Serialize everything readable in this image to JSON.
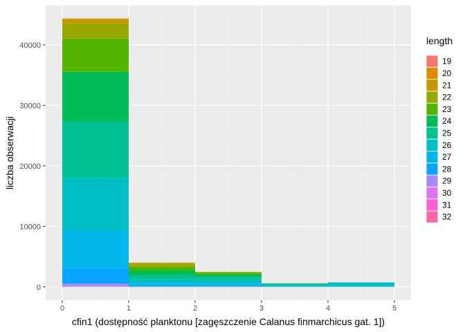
{
  "chart_data": {
    "type": "bar",
    "stacked": true,
    "xlabel": "cfin1 (dostępność planktonu [zagęszczenie Calanus finmarchicus gat. 1])",
    "ylabel": "liczba obserwacji",
    "xlim": [
      -0.25,
      5.25
    ],
    "ylim": [
      -2200,
      46500
    ],
    "x_ticks": [
      0,
      1,
      2,
      3,
      4,
      5
    ],
    "y_ticks": [
      0,
      10000,
      20000,
      30000,
      40000
    ],
    "y_tick_labels": [
      "0",
      "10000",
      "20000",
      "30000",
      "40000"
    ],
    "bins": [
      [
        0,
        1
      ],
      [
        1,
        2
      ],
      [
        2,
        3
      ],
      [
        3,
        4
      ],
      [
        4,
        5
      ]
    ],
    "grid": true,
    "legend": {
      "title": "length",
      "position": "right"
    },
    "series": [
      {
        "name": "19",
        "color": "#F8766D",
        "values": [
          0,
          0,
          0,
          0,
          0
        ]
      },
      {
        "name": "20",
        "color": "#E38900",
        "values": [
          150,
          30,
          0,
          0,
          0
        ]
      },
      {
        "name": "21",
        "color": "#C49A00",
        "values": [
          650,
          200,
          40,
          0,
          0
        ]
      },
      {
        "name": "22",
        "color": "#99A800",
        "values": [
          2500,
          400,
          110,
          0,
          0
        ]
      },
      {
        "name": "23",
        "color": "#53B400",
        "values": [
          5500,
          650,
          250,
          20,
          0
        ]
      },
      {
        "name": "24",
        "color": "#00BC56",
        "values": [
          8200,
          850,
          400,
          100,
          0
        ]
      },
      {
        "name": "25",
        "color": "#00C094",
        "values": [
          9300,
          700,
          500,
          100,
          20
        ]
      },
      {
        "name": "26",
        "color": "#00BFC4",
        "values": [
          8700,
          600,
          600,
          200,
          550
        ]
      },
      {
        "name": "27",
        "color": "#00B6EB",
        "values": [
          6200,
          400,
          400,
          150,
          150
        ]
      },
      {
        "name": "28",
        "color": "#06A4FF",
        "values": [
          2600,
          150,
          150,
          20,
          20
        ]
      },
      {
        "name": "29",
        "color": "#A58AFF",
        "values": [
          500,
          20,
          20,
          0,
          0
        ]
      },
      {
        "name": "30",
        "color": "#DF70F8",
        "values": [
          50,
          0,
          0,
          0,
          0
        ]
      },
      {
        "name": "31",
        "color": "#FB61D7",
        "values": [
          0,
          0,
          0,
          0,
          0
        ]
      },
      {
        "name": "32",
        "color": "#FF66A8",
        "values": [
          0,
          0,
          0,
          0,
          0
        ]
      }
    ]
  }
}
